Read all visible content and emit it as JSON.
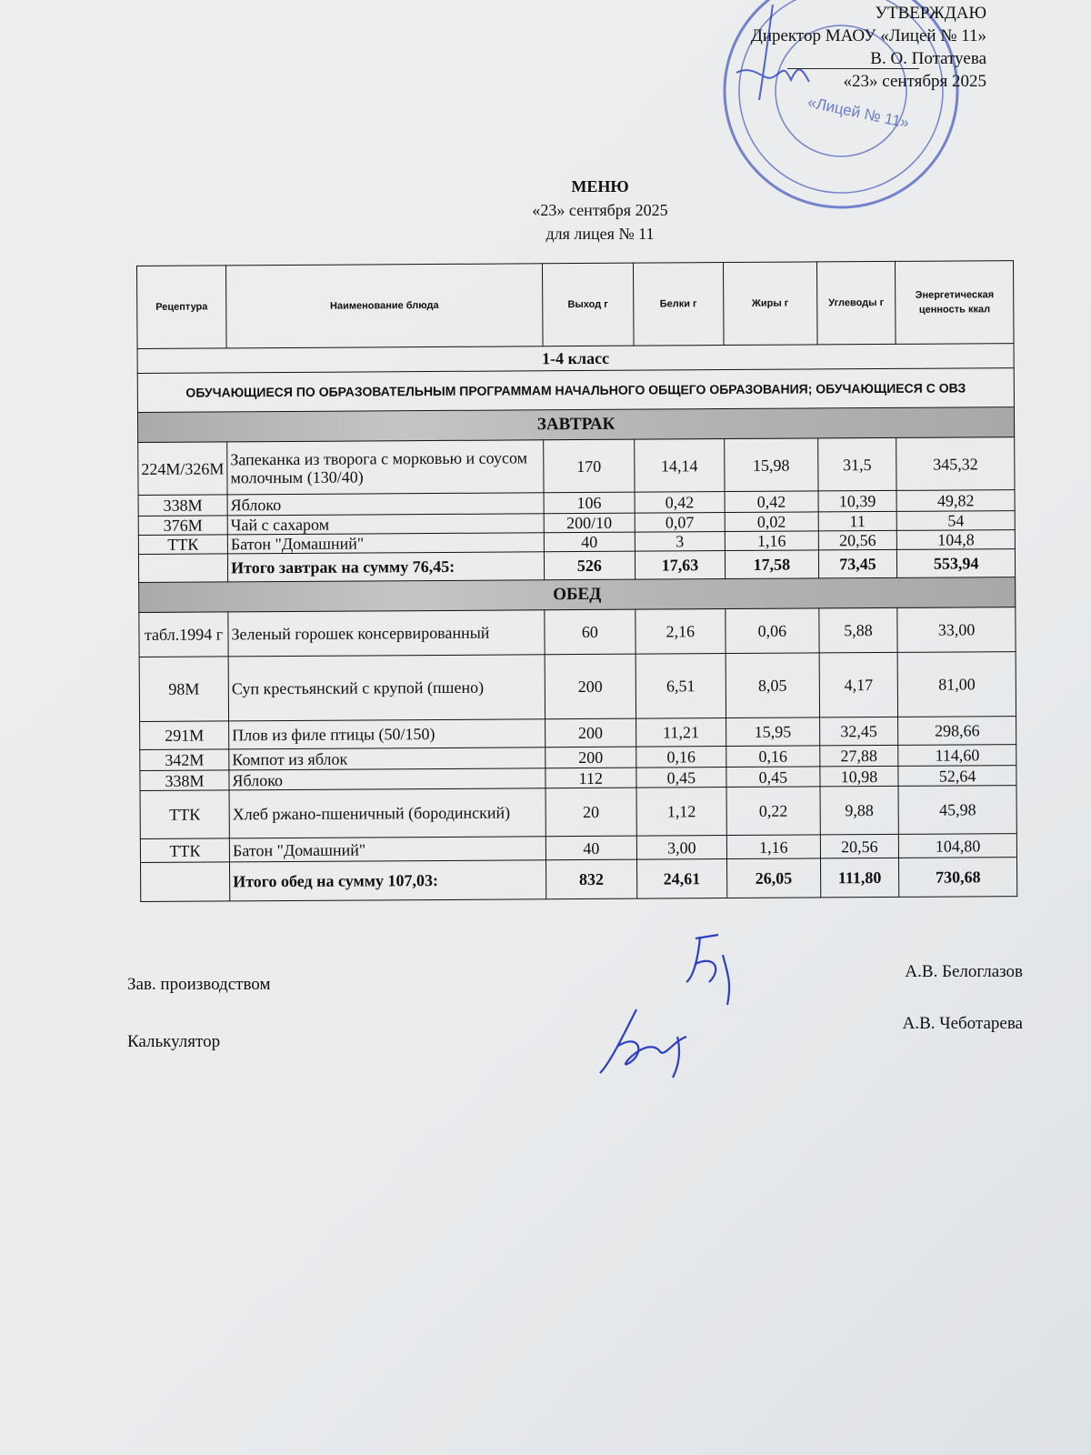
{
  "approval": {
    "heading": "УТВЕРЖДАЮ",
    "position": "Директор МАОУ «Лицей № 11»",
    "name": "В. О. Потатуева",
    "date": "«23» сентября 2025",
    "stamp_text": "«Лицей № 11»"
  },
  "title": {
    "heading": "МЕНЮ",
    "date": "«23» сентября 2025",
    "school": "для лицея № 11"
  },
  "table": {
    "headers": [
      "Рецептура",
      "Наименование блюда",
      "Выход г",
      "Белки г",
      "Жиры г",
      "Углеводы г",
      "Энергетическая ценность ккал"
    ],
    "class_label": "1-4 класс",
    "group_label": "ОБУЧАЮЩИЕСЯ ПО ОБРАЗОВАТЕЛЬНЫМ ПРОГРАММАМ НАЧАЛЬНОГО ОБЩЕГО ОБРАЗОВАНИЯ; ОБУЧАЮЩИЕСЯ С ОВЗ",
    "sections": [
      {
        "title": "ЗАВТРАК",
        "rows": [
          [
            "224М/326М",
            "Запеканка из творога с морковью и соусом молочным (130/40)",
            "170",
            "14,14",
            "15,98",
            "31,5",
            "345,32"
          ],
          [
            "338М",
            "Яблоко",
            "106",
            "0,42",
            "0,42",
            "10,39",
            "49,82"
          ],
          [
            "376М",
            "Чай с сахаром",
            "200/10",
            "0,07",
            "0,02",
            "11",
            "54"
          ],
          [
            "ТТК",
            "Батон \"Домашний\"",
            "40",
            "3",
            "1,16",
            "20,56",
            "104,8"
          ]
        ],
        "total": [
          "",
          "Итого завтрак на сумму 76,45:",
          "526",
          "17,63",
          "17,58",
          "73,45",
          "553,94"
        ]
      },
      {
        "title": "ОБЕД",
        "rows": [
          [
            "табл.1994 г",
            "Зеленый горошек консервированный",
            "60",
            "2,16",
            "0,06",
            "5,88",
            "33,00"
          ],
          [
            "98М",
            "Суп крестьянский с крупой (пшено)",
            "200",
            "6,51",
            "8,05",
            "4,17",
            "81,00"
          ],
          [
            "291М",
            "Плов из филе птицы (50/150)",
            "200",
            "11,21",
            "15,95",
            "32,45",
            "298,66"
          ],
          [
            "342М",
            "Компот из яблок",
            "200",
            "0,16",
            "0,16",
            "27,88",
            "114,60"
          ],
          [
            "338М",
            "Яблоко",
            "112",
            "0,45",
            "0,45",
            "10,98",
            "52,64"
          ],
          [
            "ТТК",
            "Хлеб ржано-пшеничный (бородинский)",
            "20",
            "1,12",
            "0,22",
            "9,88",
            "45,98"
          ],
          [
            "ТТК",
            "Батон \"Домашний\"",
            "40",
            "3,00",
            "1,16",
            "20,56",
            "104,80"
          ]
        ],
        "total": [
          "",
          "Итого обед на сумму 107,03:",
          "832",
          "24,61",
          "26,05",
          "111,80",
          "730,68"
        ]
      }
    ]
  },
  "signatures": [
    {
      "role": "Зав. производством",
      "name": "А.В. Белоглазов"
    },
    {
      "role": "Калькулятор",
      "name": "А.В. Чеботарева"
    }
  ],
  "colors": {
    "ink_blue": "#2b3fc4",
    "stamp_blue": "#4a5fc0",
    "band_grey": "#b3b4b6"
  }
}
